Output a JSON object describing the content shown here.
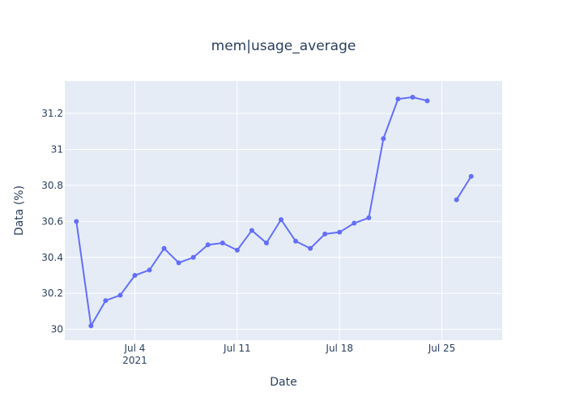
{
  "chart_data": {
    "type": "line",
    "title": "mem|usage_average",
    "xlabel": "Date",
    "ylabel": "Data (%)",
    "x_tick_labels": [
      {
        "date": "2021-07-04",
        "label": "Jul 4",
        "sublabel": "2021"
      },
      {
        "date": "2021-07-11",
        "label": "Jul 11"
      },
      {
        "date": "2021-07-18",
        "label": "Jul 18"
      },
      {
        "date": "2021-07-25",
        "label": "Jul 25"
      }
    ],
    "y_ticks": [
      30,
      30.2,
      30.4,
      30.6,
      30.8,
      31,
      31.2
    ],
    "y_tick_labels": [
      "30",
      "30.2",
      "30.4",
      "30.6",
      "30.8",
      "31",
      "31.2"
    ],
    "xlim": [
      "2021-06-29T05:00",
      "2021-07-29T03:00"
    ],
    "ylim": [
      29.94,
      31.38
    ],
    "grid": true,
    "series": [
      {
        "line_color": "#636efa",
        "x": [
          "2021-06-30",
          "2021-07-01",
          "2021-07-02",
          "2021-07-03",
          "2021-07-04",
          "2021-07-05",
          "2021-07-06",
          "2021-07-07",
          "2021-07-08",
          "2021-07-09",
          "2021-07-10",
          "2021-07-11",
          "2021-07-12",
          "2021-07-13",
          "2021-07-14",
          "2021-07-15",
          "2021-07-16",
          "2021-07-17",
          "2021-07-18",
          "2021-07-19",
          "2021-07-20",
          "2021-07-21",
          "2021-07-22",
          "2021-07-23",
          "2021-07-24",
          "2021-07-25",
          "2021-07-26",
          "2021-07-27"
        ],
        "y": [
          30.6,
          30.02,
          30.16,
          30.19,
          30.3,
          30.33,
          30.45,
          30.37,
          30.4,
          30.47,
          30.48,
          30.44,
          30.55,
          30.48,
          30.61,
          30.49,
          30.45,
          30.53,
          30.54,
          30.59,
          30.62,
          31.06,
          31.28,
          31.29,
          31.27,
          null,
          30.72,
          30.85
        ]
      }
    ],
    "colors": {
      "plot_background": "#e5ecf6",
      "grid": "#ffffff",
      "text": "#2a3f5f"
    }
  }
}
